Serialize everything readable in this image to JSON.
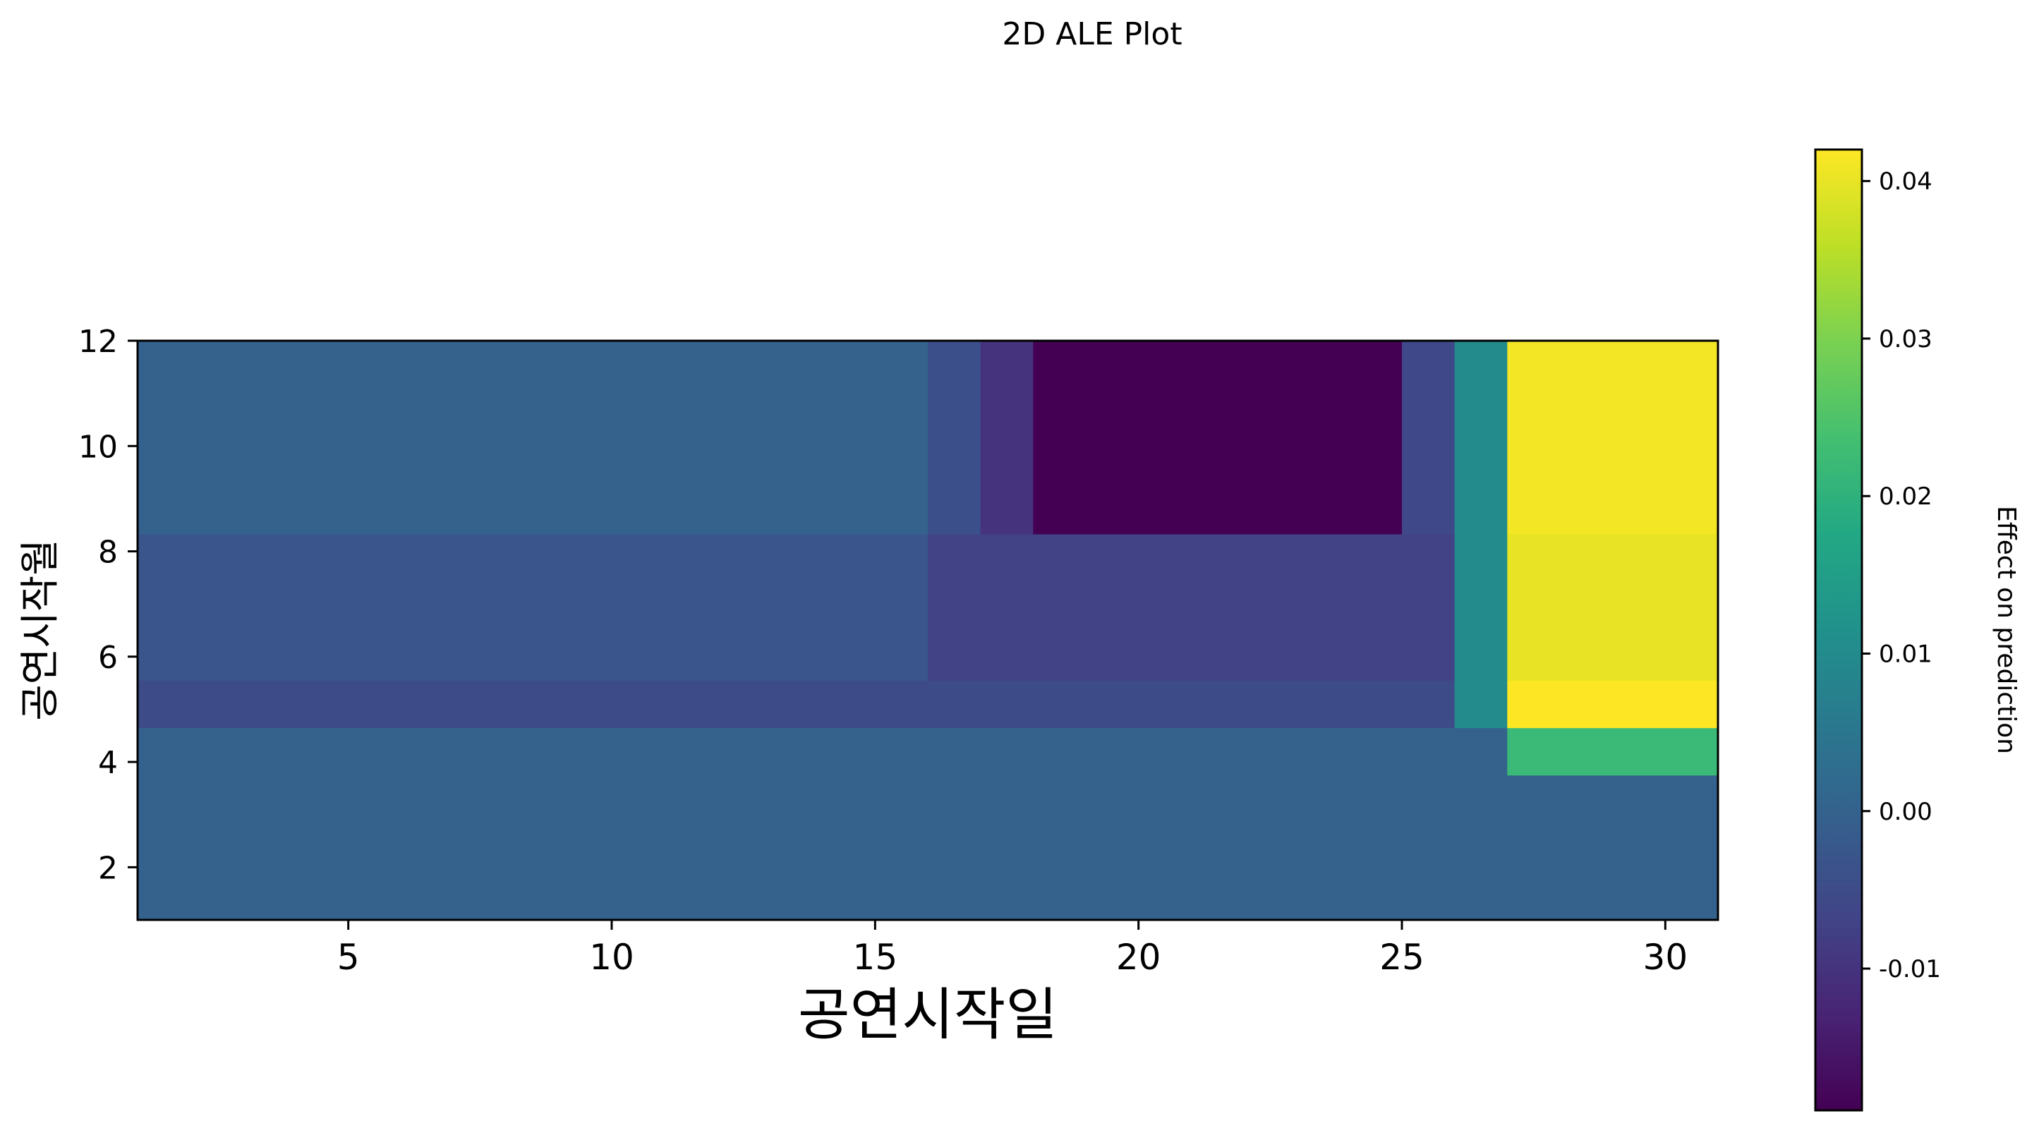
{
  "chart_data": {
    "type": "heatmap",
    "title": "2D ALE Plot",
    "xlabel": "공연시작일",
    "ylabel": "공연시작월",
    "xlim": [
      1,
      31
    ],
    "ylim": [
      1,
      12
    ],
    "xticks": [
      5,
      10,
      15,
      20,
      25,
      30
    ],
    "yticks": [
      2,
      4,
      6,
      8,
      10,
      12
    ],
    "colorbar": {
      "label": "Effect on prediction",
      "colormap": "viridis",
      "range": [
        -0.019,
        0.042
      ],
      "ticks": [
        -0.01,
        0.0,
        0.01,
        0.02,
        0.03,
        0.04
      ],
      "tick_labels": [
        "-0.01",
        "0.00",
        "0.01",
        "0.02",
        "0.03",
        "0.04"
      ]
    },
    "cells": [
      {
        "x": [
          1,
          31
        ],
        "y": [
          1,
          3.75
        ],
        "value": 0.0
      },
      {
        "x": [
          1,
          27
        ],
        "y": [
          3.75,
          4.65
        ],
        "value": 0.0
      },
      {
        "x": [
          27,
          31
        ],
        "y": [
          3.75,
          4.65
        ],
        "value": 0.022
      },
      {
        "x": [
          1,
          26
        ],
        "y": [
          4.65,
          5.55
        ],
        "value": -0.005
      },
      {
        "x": [
          26,
          27
        ],
        "y": [
          4.65,
          5.55
        ],
        "value": 0.01
      },
      {
        "x": [
          27,
          31
        ],
        "y": [
          4.65,
          5.55
        ],
        "value": 0.042
      },
      {
        "x": [
          1,
          16
        ],
        "y": [
          5.55,
          8.33
        ],
        "value": -0.003
      },
      {
        "x": [
          16,
          26
        ],
        "y": [
          5.55,
          8.33
        ],
        "value": -0.007
      },
      {
        "x": [
          26,
          27
        ],
        "y": [
          5.55,
          8.33
        ],
        "value": 0.01
      },
      {
        "x": [
          27,
          31
        ],
        "y": [
          5.55,
          8.33
        ],
        "value": 0.04
      },
      {
        "x": [
          1,
          16
        ],
        "y": [
          8.33,
          12
        ],
        "value": 0.0
      },
      {
        "x": [
          16,
          17
        ],
        "y": [
          8.33,
          12
        ],
        "value": -0.004
      },
      {
        "x": [
          17,
          18
        ],
        "y": [
          8.33,
          12
        ],
        "value": -0.01
      },
      {
        "x": [
          18,
          25
        ],
        "y": [
          8.33,
          12
        ],
        "value": -0.019
      },
      {
        "x": [
          25,
          26
        ],
        "y": [
          8.33,
          12
        ],
        "value": -0.006
      },
      {
        "x": [
          26,
          27
        ],
        "y": [
          8.33,
          12
        ],
        "value": 0.01
      },
      {
        "x": [
          27,
          31
        ],
        "y": [
          8.33,
          12
        ],
        "value": 0.041
      }
    ]
  }
}
